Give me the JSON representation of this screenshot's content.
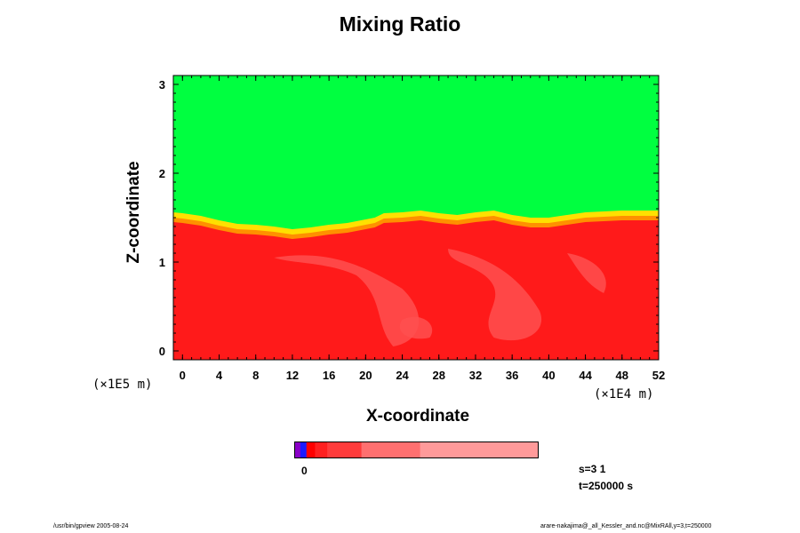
{
  "chart_data": {
    "type": "heatmap",
    "title": "Mixing Ratio",
    "xlabel": "X-coordinate",
    "ylabel": "Z-coordinate",
    "x_scale_note": "(×1E4 m)",
    "y_scale_note": "(×1E5 m)",
    "xlim": [
      -1,
      52
    ],
    "ylim": [
      -0.1,
      3.1
    ],
    "x_ticks": [
      0,
      4,
      8,
      12,
      16,
      20,
      24,
      28,
      32,
      36,
      40,
      44,
      48,
      52
    ],
    "y_ticks": [
      0,
      1,
      2,
      3
    ],
    "regions": [
      {
        "name": "upper layer",
        "color": "#00ff40",
        "z_range": [
          1.5,
          3.1
        ]
      },
      {
        "name": "transition",
        "color": "#ffe000",
        "z_range": [
          1.3,
          1.55
        ]
      },
      {
        "name": "lower layer",
        "color": "#ff1a1a",
        "z_range": [
          -0.1,
          1.35
        ]
      }
    ],
    "interface_height": [
      [
        -1,
        1.53
      ],
      [
        0,
        1.52
      ],
      [
        2,
        1.49
      ],
      [
        4,
        1.44
      ],
      [
        6,
        1.4
      ],
      [
        8,
        1.39
      ],
      [
        10,
        1.37
      ],
      [
        12,
        1.34
      ],
      [
        14,
        1.36
      ],
      [
        16,
        1.39
      ],
      [
        18,
        1.41
      ],
      [
        20,
        1.45
      ],
      [
        21,
        1.47
      ],
      [
        22,
        1.52
      ],
      [
        24,
        1.53
      ],
      [
        26,
        1.55
      ],
      [
        28,
        1.52
      ],
      [
        30,
        1.5
      ],
      [
        32,
        1.53
      ],
      [
        34,
        1.55
      ],
      [
        36,
        1.5
      ],
      [
        38,
        1.47
      ],
      [
        40,
        1.47
      ],
      [
        42,
        1.5
      ],
      [
        44,
        1.53
      ],
      [
        46,
        1.54
      ],
      [
        48,
        1.55
      ],
      [
        50,
        1.55
      ],
      [
        52,
        1.55
      ]
    ],
    "colorbar": {
      "zero_label": "0",
      "levels": [
        {
          "color": "#8a00c8",
          "fraction": 0.025
        },
        {
          "color": "#1a1aff",
          "fraction": 0.025
        },
        {
          "color": "#ff0000",
          "fraction": 0.035
        },
        {
          "color": "#ff2020",
          "fraction": 0.05
        },
        {
          "color": "#ff3c3c",
          "fraction": 0.14
        },
        {
          "color": "#ff7070",
          "fraction": 0.24
        },
        {
          "color": "#ff9a9a",
          "fraction": 0.485
        }
      ]
    }
  },
  "info": {
    "step": "s=3 1",
    "time": "t=250000 s"
  },
  "footer": {
    "left": "/usr/bin/gpview 2005-08-24",
    "right": "arare-nakajima@_all_Kessler_and.nc@MixRAll,y=3,t=250000"
  },
  "colors": {
    "green": "#00ff40",
    "yellow": "#ffe000",
    "orange": "#ff9000",
    "red": "#ff1a1a",
    "pink": "#ff5050"
  }
}
